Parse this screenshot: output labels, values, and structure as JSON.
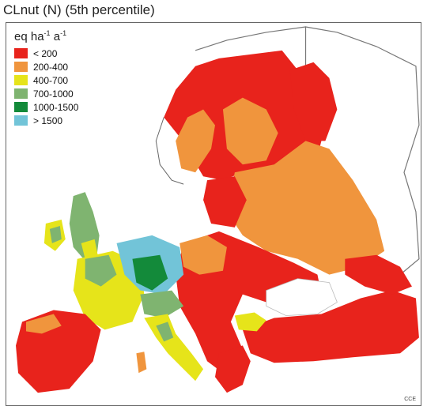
{
  "map": {
    "title": "CLnut (N) (5th percentile)",
    "unit": {
      "base": "eq ha",
      "exp1": "-1",
      "mid": " a",
      "exp2": "-1"
    },
    "credit": "CCE",
    "legend": [
      {
        "label": "< 200",
        "color": "#e8231c"
      },
      {
        "label": "200-400",
        "color": "#f0953d"
      },
      {
        "label": "400-700",
        "color": "#e6e41a"
      },
      {
        "label": "700-1000",
        "color": "#7fb470"
      },
      {
        "label": "1000-1500",
        "color": "#138a3a"
      },
      {
        "label": "> 1500",
        "color": "#72c4d8"
      }
    ]
  }
}
